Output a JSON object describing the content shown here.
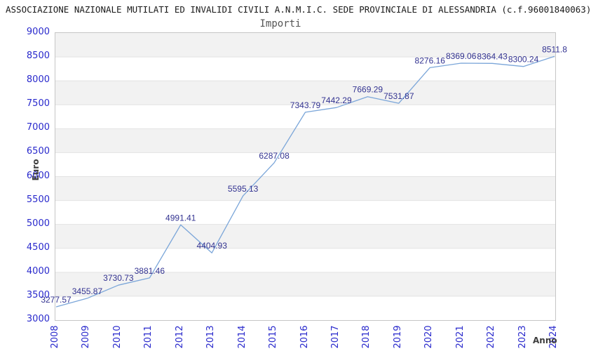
{
  "header": {
    "title": "ASSOCIAZIONE NAZIONALE MUTILATI ED INVALIDI CIVILI A.N.M.I.C. SEDE PROVINCIALE DI ALESSANDRIA (c.f.96001840063)",
    "subtitle": "Importi"
  },
  "chart_data": {
    "type": "line",
    "title": "Importi",
    "xlabel": "Anno",
    "ylabel": "Euro",
    "categories": [
      "2008",
      "2009",
      "2010",
      "2011",
      "2012",
      "2013",
      "2014",
      "2015",
      "2016",
      "2017",
      "2018",
      "2019",
      "2020",
      "2021",
      "2022",
      "2023",
      "2024"
    ],
    "values": [
      3277.57,
      3455.87,
      3730.73,
      3881.46,
      4991.41,
      4404.93,
      5595.13,
      6287.08,
      7343.79,
      7442.29,
      7669.29,
      7531.87,
      8276.16,
      8369.06,
      8364.43,
      8300.24,
      8511.8
    ],
    "point_labels": [
      "3277.57",
      "3455.87",
      "3730.73",
      "3881.46",
      "4991.41",
      "4404.93",
      "5595.13",
      "6287.08",
      "7343.79",
      "7442.29",
      "7669.29",
      "7531.87",
      "8276.16",
      "8369.06",
      "8364.43",
      "8300.24",
      "8511.8"
    ],
    "ylim": [
      3000,
      9000
    ],
    "y_ticks": [
      9000,
      8500,
      8000,
      7500,
      7000,
      6500,
      6000,
      5500,
      5000,
      4500,
      4000,
      3500,
      3000
    ],
    "grid": "alternating horizontal bands with gridlines every 500",
    "legend": "none"
  },
  "colors": {
    "line": "#7ba6d9",
    "tick_label": "#2929cc",
    "point_label": "#333391",
    "band": "#f2f2f2",
    "gridline": "#e3e3e3",
    "plot_border": "#c6c6c6",
    "title": "#1a1a1a",
    "subtitle": "#545454",
    "axis_title": "#3d3d3d"
  }
}
